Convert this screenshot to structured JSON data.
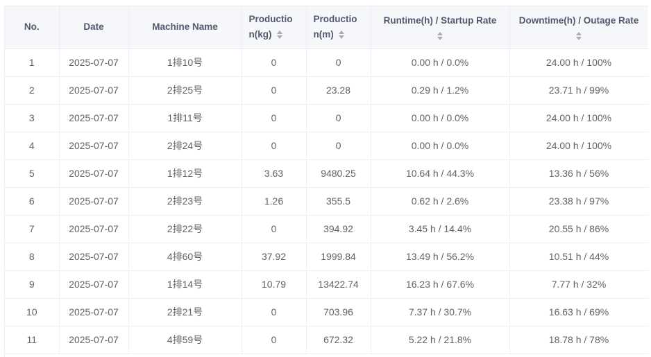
{
  "table": {
    "headers": {
      "no": "No.",
      "date": "Date",
      "machine_name": "Machine Name",
      "production_kg_part1": "Productio",
      "production_kg_part2": "n(kg)",
      "production_m_part1": "Productio",
      "production_m_part2": "n(m)",
      "runtime": "Runtime(h) / Startup Rate",
      "downtime": "Downtime(h) / Outage Rate"
    },
    "sort_icon": "sort-caret-icon",
    "rows": [
      {
        "no": "1",
        "date": "2025-07-07",
        "machine": "1排10号",
        "prod_kg": "0",
        "prod_m": "0",
        "runtime": "0.00 h / 0.0%",
        "downtime": "24.00 h / 100%"
      },
      {
        "no": "2",
        "date": "2025-07-07",
        "machine": "2排25号",
        "prod_kg": "0",
        "prod_m": "23.28",
        "runtime": "0.29 h / 1.2%",
        "downtime": "23.71 h / 99%"
      },
      {
        "no": "3",
        "date": "2025-07-07",
        "machine": "1排11号",
        "prod_kg": "0",
        "prod_m": "0",
        "runtime": "0.00 h / 0.0%",
        "downtime": "24.00 h / 100%"
      },
      {
        "no": "4",
        "date": "2025-07-07",
        "machine": "2排24号",
        "prod_kg": "0",
        "prod_m": "0",
        "runtime": "0.00 h / 0.0%",
        "downtime": "24.00 h / 100%"
      },
      {
        "no": "5",
        "date": "2025-07-07",
        "machine": "1排12号",
        "prod_kg": "3.63",
        "prod_m": "9480.25",
        "runtime": "10.64 h / 44.3%",
        "downtime": "13.36 h / 56%"
      },
      {
        "no": "6",
        "date": "2025-07-07",
        "machine": "2排23号",
        "prod_kg": "1.26",
        "prod_m": "355.5",
        "runtime": "0.62 h / 2.6%",
        "downtime": "23.38 h / 97%"
      },
      {
        "no": "7",
        "date": "2025-07-07",
        "machine": "2排22号",
        "prod_kg": "0",
        "prod_m": "394.92",
        "runtime": "3.45 h / 14.4%",
        "downtime": "20.55 h / 86%"
      },
      {
        "no": "8",
        "date": "2025-07-07",
        "machine": "4排60号",
        "prod_kg": "37.92",
        "prod_m": "1999.84",
        "runtime": "13.49 h / 56.2%",
        "downtime": "10.51 h / 44%"
      },
      {
        "no": "9",
        "date": "2025-07-07",
        "machine": "1排14号",
        "prod_kg": "10.79",
        "prod_m": "13422.74",
        "runtime": "16.23 h / 67.6%",
        "downtime": "7.77 h / 32%"
      },
      {
        "no": "10",
        "date": "2025-07-07",
        "machine": "2排21号",
        "prod_kg": "0",
        "prod_m": "703.96",
        "runtime": "7.37 h / 30.7%",
        "downtime": "16.63 h / 69%"
      },
      {
        "no": "11",
        "date": "2025-07-07",
        "machine": "4排59号",
        "prod_kg": "0",
        "prod_m": "672.32",
        "runtime": "5.22 h / 21.8%",
        "downtime": "18.78 h / 78%"
      }
    ]
  }
}
